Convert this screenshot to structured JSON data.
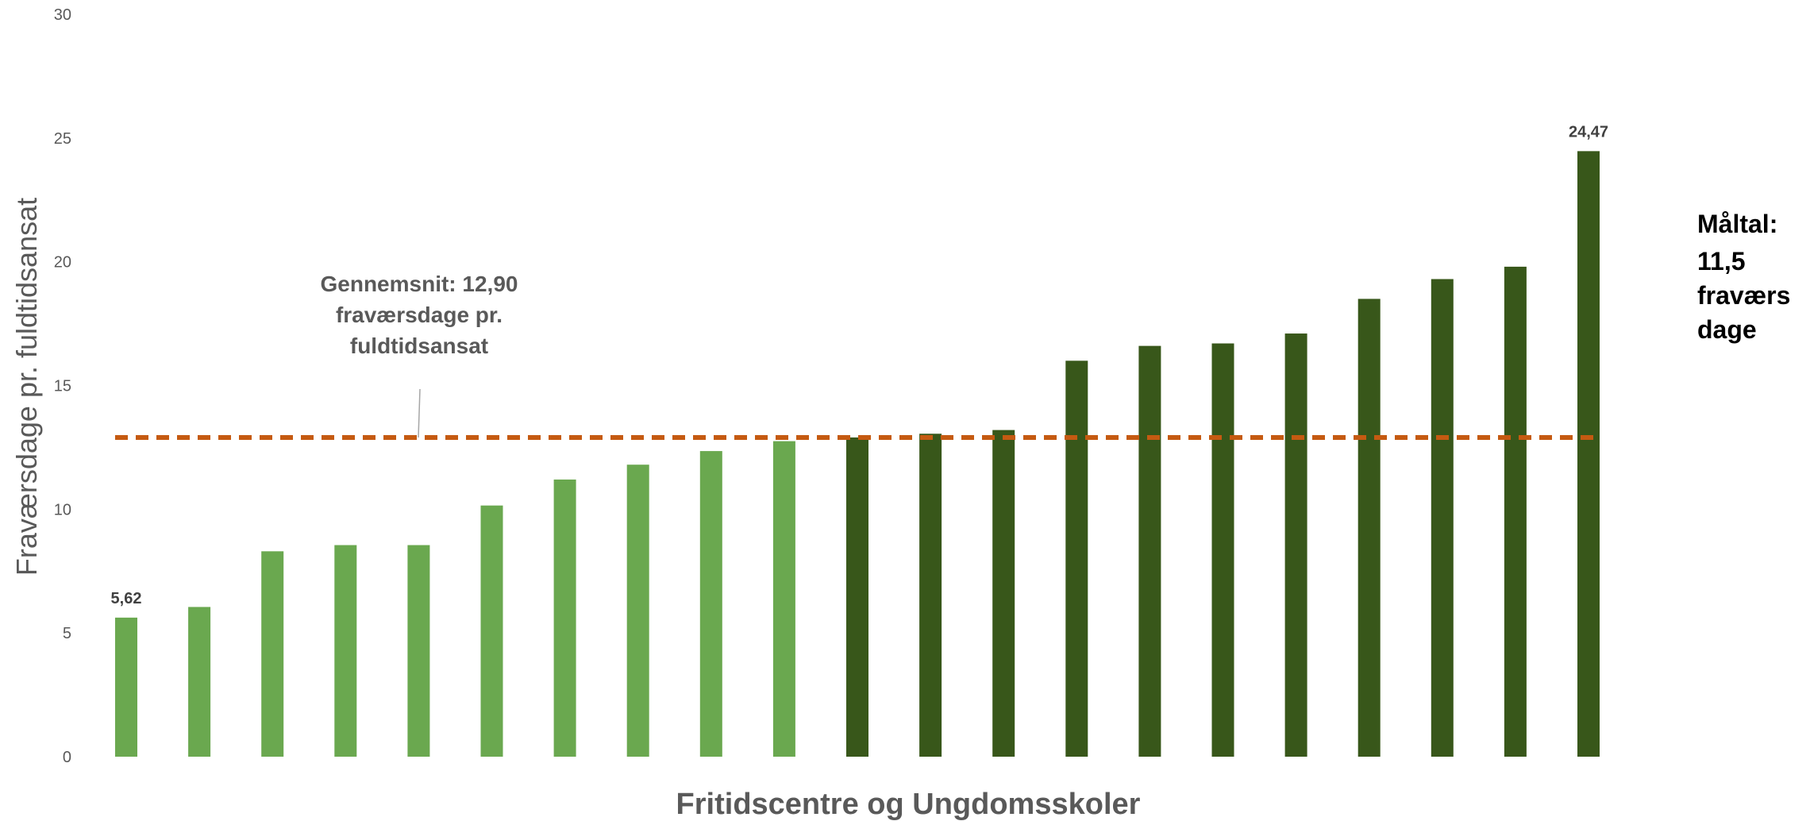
{
  "chart_data": {
    "type": "bar",
    "ylabel": "Fraværsdage pr. fuldtidsansat",
    "xlabel": "Fritidscentre og Ungdomsskoler",
    "ylim": [
      0,
      30
    ],
    "yticks": [
      0,
      5,
      10,
      15,
      20,
      25,
      30
    ],
    "grid": false,
    "values": [
      5.62,
      6.05,
      8.3,
      8.55,
      8.55,
      10.15,
      11.2,
      11.8,
      12.35,
      12.75,
      12.9,
      13.05,
      13.2,
      16.0,
      16.6,
      16.7,
      17.1,
      18.5,
      19.3,
      19.8,
      24.47
    ],
    "bar_colors": [
      "#6aa84f",
      "#6aa84f",
      "#6aa84f",
      "#6aa84f",
      "#6aa84f",
      "#6aa84f",
      "#6aa84f",
      "#6aa84f",
      "#6aa84f",
      "#6aa84f",
      "#38571a",
      "#38571a",
      "#38571a",
      "#38571a",
      "#38571a",
      "#38571a",
      "#38571a",
      "#38571a",
      "#38571a",
      "#38571a",
      "#38571a"
    ],
    "data_labels": [
      {
        "index": 0,
        "text": "5,62"
      },
      {
        "index": 20,
        "text": "24,47"
      }
    ],
    "average": {
      "value": 12.9,
      "color": "#c55a11",
      "style": "dashed",
      "label": [
        "Gennemsnit: 12,90",
        "fraværsdage pr.",
        "fuldtidsansat"
      ]
    },
    "target_text": [
      "Måltal:",
      "11,5",
      "fraværs",
      "dage"
    ]
  }
}
